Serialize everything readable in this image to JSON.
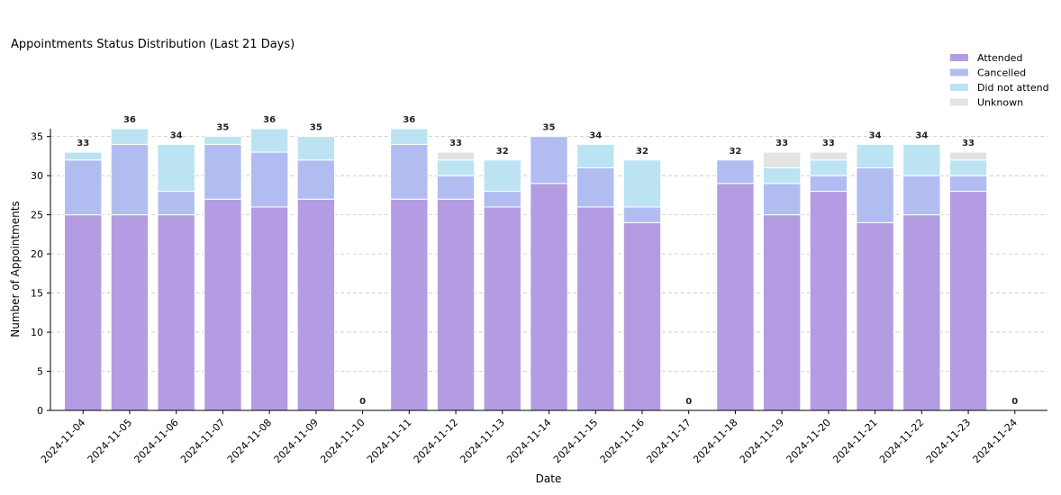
{
  "chart_data": {
    "type": "bar",
    "stacked": true,
    "title": "Appointments Status Distribution (Last 21 Days)",
    "xlabel": "Date",
    "ylabel": "Number of Appointments",
    "ylim": [
      0,
      36
    ],
    "yticks": [
      0,
      5,
      10,
      15,
      20,
      25,
      30,
      35
    ],
    "grid": "horizontal-dashed",
    "legend_position": "top-right",
    "categories": [
      "2024-11-04",
      "2024-11-05",
      "2024-11-06",
      "2024-11-07",
      "2024-11-08",
      "2024-11-09",
      "2024-11-10",
      "2024-11-11",
      "2024-11-12",
      "2024-11-13",
      "2024-11-14",
      "2024-11-15",
      "2024-11-16",
      "2024-11-17",
      "2024-11-18",
      "2024-11-19",
      "2024-11-20",
      "2024-11-21",
      "2024-11-22",
      "2024-11-23",
      "2024-11-24"
    ],
    "series": [
      {
        "name": "Attended",
        "color": "#b39ce1",
        "values": [
          25,
          25,
          25,
          27,
          26,
          27,
          0,
          27,
          27,
          26,
          29,
          26,
          24,
          0,
          29,
          25,
          28,
          24,
          25,
          28,
          0
        ]
      },
      {
        "name": "Cancelled",
        "color": "#b1bdf1",
        "values": [
          7,
          9,
          3,
          7,
          7,
          5,
          0,
          7,
          3,
          2,
          6,
          5,
          2,
          0,
          3,
          4,
          2,
          7,
          5,
          2,
          0
        ]
      },
      {
        "name": "Did not attend",
        "color": "#bce3f1",
        "values": [
          1,
          2,
          6,
          1,
          3,
          3,
          0,
          2,
          2,
          4,
          0,
          3,
          6,
          0,
          0,
          2,
          2,
          3,
          4,
          2,
          0
        ]
      },
      {
        "name": "Unknown",
        "color": "#e3e3e3",
        "values": [
          0,
          0,
          0,
          0,
          0,
          0,
          0,
          0,
          1,
          0,
          0,
          0,
          0,
          0,
          0,
          2,
          1,
          0,
          0,
          1,
          0
        ]
      }
    ],
    "totals": [
      33,
      36,
      34,
      35,
      36,
      35,
      0,
      36,
      33,
      32,
      35,
      34,
      32,
      0,
      32,
      33,
      33,
      34,
      34,
      33,
      0
    ]
  }
}
